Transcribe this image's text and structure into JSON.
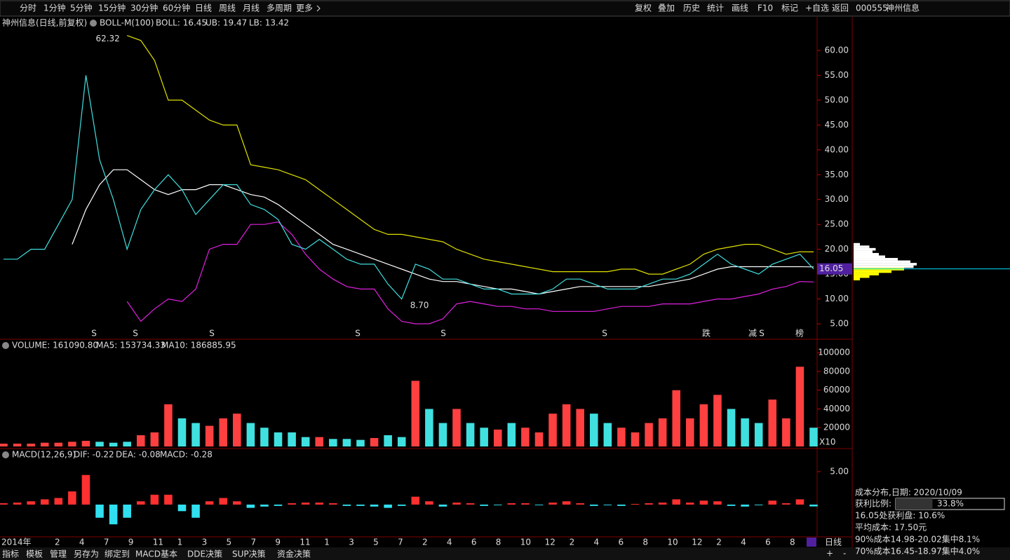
{
  "toolbar": {
    "periods": [
      "分时",
      "1分钟",
      "5分钟",
      "15分钟",
      "30分钟",
      "60分钟",
      "日线",
      "周线",
      "月线",
      "多周期",
      "更多"
    ],
    "actions": [
      "复权",
      "叠加",
      "历史",
      "统计",
      "画线",
      "F10",
      "标记",
      "+自选",
      "返回"
    ]
  },
  "stock": {
    "code": "000555",
    "name": "神州信息"
  },
  "price_chart": {
    "type": "line",
    "title": "神州信息(日线,前复权)",
    "indicator": "BOLL-M(100)",
    "boll": "BOLL: 16.45",
    "ub": "UB: 19.47",
    "lb": "LB: 13.42",
    "ylim": [
      2.04,
      66.77
    ],
    "yticks": [
      {
        "value": 5,
        "label": "5.00"
      },
      {
        "value": 10,
        "label": "10.00"
      },
      {
        "value": 15,
        "label": "15.00"
      },
      {
        "value": 20,
        "label": "20.00"
      },
      {
        "value": 25,
        "label": "25.00"
      },
      {
        "value": 30,
        "label": "30.00"
      },
      {
        "value": 35,
        "label": "35.00"
      },
      {
        "value": 40,
        "label": "40.00"
      },
      {
        "value": 45,
        "label": "45.00"
      },
      {
        "value": 50,
        "label": "50.00"
      },
      {
        "value": 55,
        "label": "55.00"
      },
      {
        "value": 60,
        "label": "60.00"
      }
    ],
    "close": [
      18,
      18,
      20,
      20,
      25,
      30,
      55,
      38,
      30,
      20,
      28,
      32,
      35,
      32,
      27,
      30,
      33,
      33,
      29,
      28,
      26,
      21,
      20,
      22,
      20,
      18,
      17,
      17,
      13,
      10,
      17,
      16,
      14,
      14,
      13,
      12,
      12,
      11,
      11,
      11,
      12,
      14,
      14,
      13,
      12,
      12,
      12,
      13,
      14,
      14,
      15,
      17,
      19,
      17,
      16,
      15,
      17,
      18,
      19,
      16.05
    ],
    "ub_values": [
      null,
      null,
      null,
      null,
      null,
      null,
      null,
      null,
      null,
      63,
      62,
      58,
      50,
      50,
      48,
      46,
      45,
      45,
      37,
      36.5,
      36,
      35,
      34,
      32,
      30,
      28,
      26,
      24,
      23,
      23,
      22.5,
      22,
      21.5,
      20,
      19,
      18,
      17.5,
      17,
      16.5,
      16,
      15.5,
      15.5,
      15.5,
      15.5,
      15.5,
      16,
      16,
      15,
      15,
      16,
      17,
      19,
      20,
      20.5,
      21,
      21,
      20,
      19,
      19.5,
      19.47
    ],
    "mb_values": [
      null,
      null,
      null,
      null,
      null,
      21,
      28,
      33,
      36,
      36,
      34,
      32,
      31,
      32,
      32,
      33,
      33,
      32,
      31,
      30.5,
      29,
      27,
      25,
      23,
      21,
      20,
      19,
      18,
      17,
      16,
      15,
      14,
      13.5,
      13.5,
      13,
      12.5,
      12,
      12,
      11.5,
      11,
      11.5,
      12,
      12.5,
      12.5,
      12.5,
      12.5,
      12.5,
      12.5,
      13,
      13.5,
      14,
      15,
      16,
      16.5,
      16.5,
      16.5,
      16.5,
      16.5,
      16.5,
      16.45
    ],
    "lb_values": [
      null,
      null,
      null,
      null,
      null,
      null,
      null,
      null,
      null,
      9.5,
      5.5,
      8,
      10,
      9.5,
      12,
      20,
      21,
      21,
      25,
      25,
      25.5,
      23,
      19,
      16,
      14,
      12.5,
      12,
      12,
      8,
      5.5,
      5,
      5,
      6,
      9,
      9.5,
      9,
      8.5,
      8.5,
      8,
      8,
      7.5,
      7.5,
      7.5,
      7.5,
      8,
      8.5,
      8.5,
      8.5,
      9,
      9,
      9,
      9.5,
      10,
      10,
      10.5,
      11,
      12,
      12.5,
      13.5,
      13.42
    ],
    "high": 62.32,
    "low": {
      "value": 8.7,
      "label": "8.70"
    },
    "last_price": 16.05,
    "markers": [
      "S",
      "S",
      "S",
      "S",
      "S",
      "S",
      "跌",
      "减",
      "S",
      "榜"
    ]
  },
  "volume_chart": {
    "type": "bar",
    "label": "VOLUME: 161090.80",
    "ma5": "MA5: 153734.33",
    "ma10": "MA10: 186885.95",
    "unit": "X10",
    "ylim": [
      0,
      113600
    ],
    "yticks": [
      20000,
      40000,
      60000,
      80000,
      100000
    ],
    "values": [
      3000,
      3000,
      3000,
      4000,
      4000,
      5000,
      6000,
      5000,
      4000,
      5000,
      12000,
      15000,
      45000,
      30000,
      25000,
      22000,
      30000,
      35000,
      25000,
      20000,
      15000,
      15000,
      10000,
      10000,
      8000,
      8000,
      7000,
      9000,
      12000,
      10000,
      70000,
      40000,
      25000,
      40000,
      25000,
      20000,
      18000,
      25000,
      20000,
      15000,
      35000,
      45000,
      40000,
      35000,
      25000,
      20000,
      15000,
      25000,
      30000,
      60000,
      30000,
      45000,
      55000,
      40000,
      30000,
      25000,
      50000,
      30000,
      85000,
      20000
    ]
  },
  "macd_chart": {
    "type": "bar",
    "label": "MACD(12,26,9)",
    "dif": "DIF: -0.22",
    "dea": "DEA: -0.08",
    "macd": "MACD: -0.28",
    "ylim": [
      -4.8,
      8.3
    ],
    "yticks": [
      {
        "value": 5,
        "label": "5.00"
      }
    ],
    "values": [
      0.2,
      0.3,
      0.5,
      0.8,
      1.0,
      2.0,
      4.5,
      -2,
      -3,
      -2,
      0.5,
      1.5,
      1.5,
      -1,
      -2,
      0.5,
      1,
      0.5,
      -0.5,
      -0.3,
      -0.2,
      0.2,
      0.3,
      0.3,
      0.2,
      -0.2,
      -0.2,
      -0.3,
      -0.5,
      -0.2,
      1.2,
      0.5,
      -0.3,
      0.3,
      0.2,
      -0.2,
      -0.1,
      0.2,
      0.2,
      -0.1,
      0.3,
      0.5,
      0.2,
      -0.2,
      -0.1,
      -0.2,
      0.1,
      0.2,
      0.3,
      0.8,
      0.3,
      0.6,
      0.5,
      -0.2,
      -0.3,
      -0.1,
      0.6,
      0.2,
      0.8,
      -0.28
    ]
  },
  "time_axis": [
    "2014年",
    "2",
    "4",
    "7",
    "9",
    "11",
    "1",
    "3",
    "5",
    "7",
    "9",
    "11",
    "1",
    "3",
    "5",
    "7",
    "2",
    "4",
    "6",
    "8",
    "10",
    "12",
    "2",
    "4",
    "6",
    "8",
    "10",
    "12",
    "2",
    "4",
    "6",
    "8"
  ],
  "cost_panel": {
    "title": "成本分布,日期: 2020/10/09",
    "profit_label": "获利比例:",
    "profit_ratio": {
      "value": 33.8,
      "label": "33.8%"
    },
    "line1": "16.05处获利盘: 10.6%",
    "line2": "平均成本: 17.50元",
    "line3": "90%成本14.98-20.02集中8.1%",
    "line4": "70%成本16.45-18.97集中4.0%",
    "prices": [
      21,
      20.5,
      20,
      19.5,
      19,
      18.5,
      18,
      17.5,
      17,
      16.5,
      16,
      15.5,
      15,
      14.5,
      14
    ],
    "values": [
      10,
      25,
      35,
      30,
      40,
      50,
      70,
      90,
      100,
      95,
      80,
      60,
      40,
      25,
      10
    ]
  },
  "period_tab": "日线",
  "zoom": [
    "+",
    "-"
  ],
  "bottom_tabs": [
    "指标",
    "模板",
    "管理",
    "另存为",
    "绑定到",
    "MACD基本",
    "DDE决策",
    "SUP决策",
    "资金决策"
  ]
}
